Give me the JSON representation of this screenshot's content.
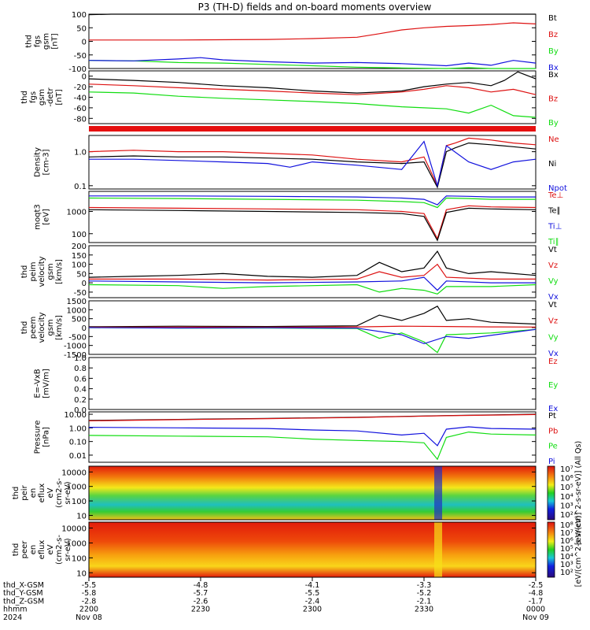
{
  "title": "P3 (TH-D) fields and on-board moments overview",
  "colors": {
    "black": "#000000",
    "red": "#dd1111",
    "green": "#11dd11",
    "blue": "#1111dd"
  },
  "chart_data": [
    {
      "type": "line",
      "id": "p1",
      "ylabel": [
        "thd",
        "fgs",
        "gsm",
        "[nT]"
      ],
      "yticks": [
        "100",
        "50",
        "0",
        "-50",
        "-100"
      ],
      "ylim": [
        -100,
        100
      ],
      "series": [
        {
          "name": "Bt",
          "color": "black",
          "x": [
            0,
            0.05,
            0.2,
            0.4,
            0.6,
            0.8,
            1.0
          ],
          "y": [
            98,
            100,
            100,
            100,
            100,
            100,
            100
          ]
        },
        {
          "name": "Bz",
          "color": "red",
          "x": [
            0,
            0.2,
            0.4,
            0.5,
            0.6,
            0.65,
            0.7,
            0.75,
            0.8,
            0.85,
            0.9,
            0.95,
            1.0
          ],
          "y": [
            5,
            5,
            7,
            10,
            15,
            28,
            42,
            50,
            55,
            58,
            62,
            68,
            64
          ]
        },
        {
          "name": "By",
          "color": "green",
          "x": [
            0,
            0.1,
            0.2,
            0.3,
            0.4,
            0.5,
            0.6,
            0.7,
            0.8,
            0.85,
            0.9,
            0.95,
            1.0
          ],
          "y": [
            -70,
            -72,
            -78,
            -80,
            -85,
            -90,
            -95,
            -98,
            -100,
            -97,
            -100,
            -102,
            -104
          ]
        },
        {
          "name": "Bx",
          "color": "blue",
          "x": [
            0,
            0.1,
            0.2,
            0.25,
            0.3,
            0.4,
            0.5,
            0.6,
            0.7,
            0.8,
            0.85,
            0.9,
            0.95,
            1.0
          ],
          "y": [
            -70,
            -72,
            -65,
            -60,
            -68,
            -75,
            -80,
            -78,
            -82,
            -90,
            -80,
            -88,
            -70,
            -80
          ]
        }
      ]
    },
    {
      "type": "line",
      "id": "p2",
      "ylabel": [
        "thd",
        "fgs",
        "gsm",
        "-detr",
        "[nT]"
      ],
      "yticks": [
        "0",
        "-20",
        "-40",
        "-60",
        "-80"
      ],
      "ylim": [
        -90,
        10
      ],
      "series": [
        {
          "name": "Bx",
          "color": "black",
          "x": [
            0,
            0.1,
            0.2,
            0.3,
            0.4,
            0.5,
            0.6,
            0.7,
            0.75,
            0.8,
            0.85,
            0.9,
            0.93,
            0.96,
            1.0
          ],
          "y": [
            -5,
            -8,
            -12,
            -18,
            -22,
            -28,
            -32,
            -28,
            -20,
            -15,
            -12,
            -18,
            -8,
            8,
            -5
          ]
        },
        {
          "name": "Bz",
          "color": "red",
          "x": [
            0,
            0.1,
            0.2,
            0.3,
            0.4,
            0.5,
            0.6,
            0.7,
            0.75,
            0.8,
            0.85,
            0.9,
            0.95,
            1.0
          ],
          "y": [
            -15,
            -18,
            -22,
            -25,
            -28,
            -32,
            -35,
            -30,
            -25,
            -18,
            -22,
            -30,
            -25,
            -35
          ]
        },
        {
          "name": "By",
          "color": "green",
          "x": [
            0,
            0.1,
            0.2,
            0.3,
            0.4,
            0.5,
            0.6,
            0.65,
            0.7,
            0.75,
            0.8,
            0.85,
            0.9,
            0.95,
            1.0
          ],
          "y": [
            -30,
            -32,
            -38,
            -42,
            -45,
            -48,
            -52,
            -55,
            -58,
            -60,
            -62,
            -70,
            -55,
            -75,
            -78
          ]
        }
      ]
    },
    {
      "type": "line",
      "id": "p3",
      "log": true,
      "ylabel": [
        "Density",
        "[cm-3]"
      ],
      "yticks": [
        "1.0",
        "0.1"
      ],
      "ylim": [
        0.08,
        3
      ],
      "series": [
        {
          "name": "Ne",
          "color": "red",
          "x": [
            0,
            0.1,
            0.2,
            0.3,
            0.4,
            0.5,
            0.6,
            0.7,
            0.75,
            0.78,
            0.8,
            0.82,
            0.85,
            0.9,
            0.95,
            1.0
          ],
          "y": [
            1.0,
            1.1,
            1.0,
            1.0,
            0.9,
            0.8,
            0.6,
            0.5,
            0.7,
            0.1,
            1.5,
            1.8,
            2.5,
            2.2,
            1.8,
            1.6
          ]
        },
        {
          "name": "Ni",
          "color": "black",
          "x": [
            0,
            0.1,
            0.2,
            0.3,
            0.4,
            0.5,
            0.6,
            0.7,
            0.75,
            0.78,
            0.8,
            0.82,
            0.85,
            0.9,
            0.95,
            1.0
          ],
          "y": [
            0.7,
            0.75,
            0.7,
            0.7,
            0.65,
            0.6,
            0.5,
            0.45,
            0.5,
            0.09,
            1.0,
            1.3,
            1.8,
            1.6,
            1.4,
            1.2
          ]
        },
        {
          "name": "Npot",
          "color": "blue",
          "x": [
            0,
            0.1,
            0.2,
            0.3,
            0.4,
            0.45,
            0.5,
            0.6,
            0.7,
            0.75,
            0.78,
            0.8,
            0.85,
            0.9,
            0.95,
            1.0
          ],
          "y": [
            0.6,
            0.6,
            0.55,
            0.5,
            0.45,
            0.35,
            0.5,
            0.4,
            0.3,
            2.0,
            0.1,
            1.5,
            0.5,
            0.3,
            0.5,
            0.6
          ]
        }
      ]
    },
    {
      "type": "line",
      "id": "p4",
      "log": true,
      "ylabel": [
        "moqt3",
        "[eV]"
      ],
      "yticks": [
        "1000",
        "100"
      ],
      "ylim": [
        40,
        8000
      ],
      "series": [
        {
          "name": "Te⊥",
          "color": "red",
          "x": [
            0,
            0.2,
            0.4,
            0.6,
            0.7,
            0.75,
            0.78,
            0.8,
            0.85,
            0.9,
            1.0
          ],
          "y": [
            1500,
            1400,
            1300,
            1200,
            1000,
            800,
            60,
            1200,
            1800,
            1600,
            1500
          ]
        },
        {
          "name": "Te∥",
          "color": "black",
          "x": [
            0,
            0.2,
            0.4,
            0.6,
            0.7,
            0.75,
            0.78,
            0.8,
            0.85,
            0.9,
            1.0
          ],
          "y": [
            1200,
            1100,
            1000,
            900,
            800,
            600,
            50,
            900,
            1400,
            1300,
            1200
          ]
        },
        {
          "name": "Ti⊥",
          "color": "blue",
          "x": [
            0,
            0.2,
            0.4,
            0.6,
            0.7,
            0.75,
            0.78,
            0.8,
            0.85,
            0.9,
            1.0
          ],
          "y": [
            5000,
            5000,
            4800,
            4500,
            4000,
            3500,
            2000,
            5000,
            4800,
            4500,
            4500
          ]
        },
        {
          "name": "Ti∥",
          "color": "green",
          "x": [
            0,
            0.2,
            0.4,
            0.6,
            0.7,
            0.75,
            0.78,
            0.8,
            0.85,
            0.9,
            1.0
          ],
          "y": [
            4000,
            3800,
            3500,
            3200,
            2800,
            2500,
            1500,
            4000,
            3800,
            3500,
            3500
          ]
        }
      ]
    },
    {
      "type": "line",
      "id": "p5",
      "ylabel": [
        "thd",
        "peim",
        "velocity",
        "gsm",
        "[km/s]"
      ],
      "yticks": [
        "200",
        "150",
        "100",
        "50",
        "0",
        "-50"
      ],
      "ylim": [
        -80,
        200
      ],
      "series": [
        {
          "name": "Vt",
          "color": "black",
          "x": [
            0,
            0.1,
            0.2,
            0.3,
            0.4,
            0.5,
            0.6,
            0.65,
            0.7,
            0.75,
            0.78,
            0.8,
            0.85,
            0.9,
            1.0
          ],
          "y": [
            30,
            35,
            40,
            50,
            35,
            30,
            40,
            110,
            60,
            80,
            170,
            80,
            50,
            60,
            40
          ]
        },
        {
          "name": "Vz",
          "color": "red",
          "x": [
            0,
            0.2,
            0.4,
            0.6,
            0.65,
            0.7,
            0.75,
            0.78,
            0.8,
            0.9,
            1.0
          ],
          "y": [
            20,
            20,
            15,
            20,
            60,
            30,
            40,
            100,
            30,
            20,
            20
          ]
        },
        {
          "name": "Vy",
          "color": "green",
          "x": [
            0,
            0.2,
            0.3,
            0.4,
            0.6,
            0.65,
            0.7,
            0.75,
            0.78,
            0.8,
            0.9,
            1.0
          ],
          "y": [
            -10,
            -15,
            -30,
            -20,
            -10,
            -50,
            -30,
            -40,
            -60,
            -20,
            -20,
            -10
          ]
        },
        {
          "name": "Vx",
          "color": "blue",
          "x": [
            0,
            0.2,
            0.4,
            0.6,
            0.7,
            0.75,
            0.78,
            0.8,
            0.9,
            1.0
          ],
          "y": [
            10,
            5,
            0,
            5,
            10,
            30,
            -40,
            10,
            0,
            0
          ]
        }
      ]
    },
    {
      "type": "line",
      "id": "p6",
      "ylabel": [
        "thd",
        "peem",
        "velocity",
        "gsm",
        "[km/s]"
      ],
      "yticks": [
        "1500",
        "1000",
        "500",
        "0",
        "-500",
        "-1000",
        "-1500"
      ],
      "ylim": [
        -1500,
        1500
      ],
      "series": [
        {
          "name": "Vt",
          "color": "black",
          "x": [
            0,
            0.2,
            0.4,
            0.6,
            0.65,
            0.7,
            0.75,
            0.78,
            0.8,
            0.85,
            0.9,
            1.0
          ],
          "y": [
            50,
            80,
            60,
            100,
            700,
            400,
            800,
            1200,
            400,
            500,
            300,
            200
          ]
        },
        {
          "name": "Vz",
          "color": "red",
          "x": [
            0,
            0.2,
            0.4,
            0.6,
            0.7,
            0.8,
            0.9,
            1.0
          ],
          "y": [
            20,
            30,
            20,
            40,
            80,
            60,
            40,
            30
          ]
        },
        {
          "name": "Vy",
          "color": "green",
          "x": [
            0,
            0.2,
            0.4,
            0.6,
            0.65,
            0.7,
            0.75,
            0.78,
            0.8,
            0.9,
            1.0
          ],
          "y": [
            0,
            -30,
            -20,
            -50,
            -600,
            -300,
            -800,
            -1400,
            -400,
            -300,
            -100
          ]
        },
        {
          "name": "Vx",
          "color": "blue",
          "x": [
            0,
            0.2,
            0.4,
            0.6,
            0.7,
            0.75,
            0.8,
            0.85,
            1.0
          ],
          "y": [
            0,
            -20,
            -10,
            -30,
            -400,
            -900,
            -500,
            -600,
            -100
          ]
        }
      ]
    },
    {
      "type": "line",
      "id": "p7",
      "ylabel": [
        "E=-VxB",
        "[mV/m]"
      ],
      "yticks": [
        "1.0",
        "0.8",
        "0.6",
        "0.4",
        "0.2",
        "0.0"
      ],
      "ylim": [
        0,
        1
      ],
      "legend": [
        "Ez",
        "Ey",
        "Ex"
      ],
      "legend_colors": [
        "red",
        "green",
        "blue"
      ],
      "series": []
    },
    {
      "type": "line",
      "id": "p8",
      "log": true,
      "ylabel": [
        "Pressure",
        "[nPa]"
      ],
      "yticks": [
        "10.00",
        "1.00",
        "0.10",
        "0.01"
      ],
      "ylim": [
        0.003,
        15
      ],
      "series": [
        {
          "name": "Pt",
          "color": "black",
          "x": [
            0,
            0.2,
            0.4,
            0.6,
            0.8,
            1.0
          ],
          "y": [
            3.5,
            4.2,
            5.0,
            6.0,
            8.0,
            10.0
          ]
        },
        {
          "name": "Pb",
          "color": "red",
          "x": [
            0,
            0.2,
            0.4,
            0.6,
            0.8,
            1.0
          ],
          "y": [
            3.3,
            4.0,
            4.8,
            5.8,
            7.8,
            9.5
          ]
        },
        {
          "name": "Pe",
          "color": "green",
          "x": [
            0,
            0.2,
            0.4,
            0.5,
            0.6,
            0.7,
            0.75,
            0.78,
            0.8,
            0.85,
            0.9,
            1.0
          ],
          "y": [
            0.28,
            0.25,
            0.22,
            0.15,
            0.12,
            0.1,
            0.08,
            0.005,
            0.2,
            0.5,
            0.35,
            0.3
          ]
        },
        {
          "name": "Pi",
          "color": "blue",
          "x": [
            0,
            0.2,
            0.4,
            0.5,
            0.6,
            0.7,
            0.75,
            0.78,
            0.8,
            0.85,
            0.9,
            1.0
          ],
          "y": [
            1.1,
            1.0,
            0.9,
            0.7,
            0.6,
            0.3,
            0.4,
            0.05,
            0.8,
            1.2,
            0.9,
            0.8
          ]
        }
      ]
    },
    {
      "type": "heatmap",
      "id": "s1",
      "ylabel": [
        "thd",
        "peir",
        "en",
        "eflux",
        "eV",
        "(cm2-s-",
        "sr-eV)"
      ],
      "yticks": [
        "10000",
        "1000",
        "100",
        "10"
      ],
      "ylim": [
        5,
        25000
      ],
      "colorbar_label": "[eV/(cm^2-s-sr-eV)] (All Qs)",
      "colorbar_ticks": [
        "10⁷",
        "10⁶",
        "10⁵",
        "10⁴",
        "10³",
        "10²"
      ]
    },
    {
      "type": "heatmap",
      "id": "s2",
      "ylabel": [
        "thd",
        "peer",
        "en",
        "eflux",
        "eV",
        "(cm2-s-",
        "sr-eV)"
      ],
      "yticks": [
        "10000",
        "1000",
        "100",
        "10"
      ],
      "ylim": [
        5,
        25000
      ],
      "colorbar_label": "[eV/(cm^2-s-sr-eV)]",
      "colorbar_ticks": [
        "10⁸",
        "10⁷",
        "10⁶",
        "10⁵",
        "10⁴",
        "10³",
        "10²"
      ]
    }
  ],
  "x_axis": {
    "rows": [
      {
        "label": "thd_X-GSM",
        "values": [
          "-5.5",
          "-4.8",
          "-4.1",
          "-3.3",
          "-2.5"
        ]
      },
      {
        "label": "thd_Y-GSM",
        "values": [
          "-5.8",
          "-5.7",
          "-5.5",
          "-5.2",
          "-4.8"
        ]
      },
      {
        "label": "thd_Z-GSM",
        "values": [
          "-2.8",
          "-2.6",
          "-2.4",
          "-2.1",
          "-1.7"
        ]
      },
      {
        "label": "hhmm",
        "values": [
          "2200",
          "2230",
          "2300",
          "2330",
          "0000"
        ]
      },
      {
        "label": "2024",
        "values": [
          "Nov 08",
          "",
          "",
          "",
          "Nov 09"
        ]
      }
    ]
  }
}
